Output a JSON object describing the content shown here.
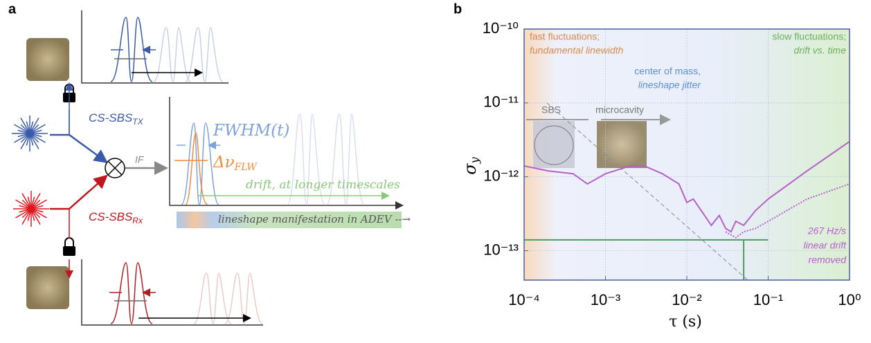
{
  "panel_a": {
    "label": "a",
    "tx": {
      "base": "CS-SBS",
      "sub": "TX"
    },
    "rx": {
      "base": "CS-SBS",
      "sub": "Rx"
    },
    "if_label": "IF",
    "fwhm": "FWHM(t)",
    "flw": {
      "base": "Δν",
      "sub": "FLW"
    },
    "drift": "drift, at longer timescales",
    "adev": "lineshape manifestation in ADEV --→"
  },
  "chart_data": {
    "type": "line",
    "label": "b",
    "xlabel": "τ (s)",
    "ylabel": {
      "base": "σ",
      "sub": "y"
    },
    "xscale": "log",
    "yscale": "log",
    "grid": true,
    "xlim": [
      0.0001,
      1
    ],
    "ylim": [
      4e-14,
      1e-10
    ],
    "xticks": [
      {
        "value": 0.0001,
        "label": "10⁻⁴"
      },
      {
        "value": 0.001,
        "label": "10⁻³"
      },
      {
        "value": 0.01,
        "label": "10⁻²"
      },
      {
        "value": 0.1,
        "label": "10⁻¹"
      },
      {
        "value": 1,
        "label": "10⁰"
      }
    ],
    "yticks": [
      {
        "value": 1e-13,
        "label": "10⁻¹³"
      },
      {
        "value": 1e-12,
        "label": "10⁻¹²"
      },
      {
        "value": 1e-11,
        "label": "10⁻¹¹"
      },
      {
        "value": 1e-10,
        "label": "10⁻¹⁰"
      }
    ],
    "series": [
      {
        "color": "#b55fc9",
        "style": "solid",
        "x": [
          0.0001,
          0.0002,
          0.0004,
          0.0006,
          0.001,
          0.002,
          0.003,
          0.005,
          0.008,
          0.01,
          0.012,
          0.015,
          0.02,
          0.025,
          0.03,
          0.035,
          0.04,
          0.05,
          0.07,
          0.1,
          0.3,
          1
        ],
        "values": [
          1.4e-12,
          1.2e-12,
          1.1e-12,
          8e-13,
          1.1e-12,
          1.4e-12,
          1.4e-12,
          1.1e-12,
          8e-13,
          4.5e-13,
          5e-13,
          3.5e-13,
          2.2e-13,
          3e-13,
          2e-13,
          1.8e-13,
          2.5e-13,
          2.2e-13,
          3.5e-13,
          5e-13,
          1.2e-12,
          3e-12
        ]
      },
      {
        "color": "#b55fc9",
        "style": "dotted",
        "x": [
          0.03,
          0.04,
          0.05,
          0.07,
          0.1,
          0.3,
          1
        ],
        "values": [
          1.8e-13,
          1.5e-13,
          1.8e-13,
          2e-13,
          2.5e-13,
          5e-13,
          8e-13
        ]
      },
      {
        "color": "#888888",
        "style": "dashed",
        "x": [
          0.00019,
          0.056
        ],
        "values": [
          1e-11,
          4e-14
        ]
      },
      {
        "color": "#4f9a64",
        "style": "solid",
        "x": [
          0.0001,
          0.1
        ],
        "values": [
          1.4e-13,
          1.4e-13
        ]
      },
      {
        "color": "#4f9a64",
        "style": "solid",
        "x": [
          0.05,
          0.05
        ],
        "values": [
          1.4e-13,
          4e-14
        ]
      }
    ],
    "annotations": {
      "fast1": "fast fluctuations;",
      "fast2": "fundamental linewidth",
      "slow1": "slow fluctuations;",
      "slow2": "drift vs. time",
      "com1": "center of mass,",
      "com2": "lineshape jitter",
      "sbs": "SBS",
      "micro": "microcavity",
      "drift1": "267 Hz/s",
      "drift2": "linear drift",
      "drift3": "removed"
    }
  }
}
